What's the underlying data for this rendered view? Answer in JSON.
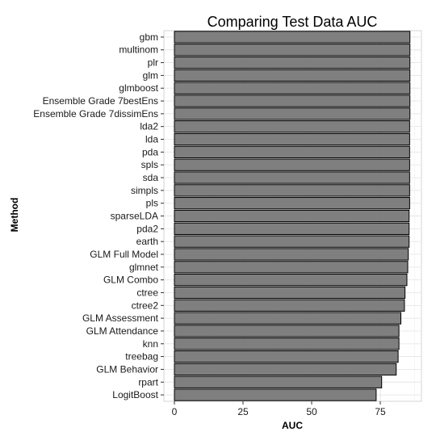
{
  "chart_data": {
    "type": "bar",
    "orientation": "horizontal",
    "title": "Comparing Test Data AUC",
    "xlabel": "AUC",
    "ylabel": "Method",
    "xlim": [
      0,
      100
    ],
    "x_ticks": [
      0,
      25,
      50,
      75
    ],
    "x_tick_labels": [
      "0",
      "25",
      "50",
      "75"
    ],
    "grid": true,
    "bar_color": "#7f7f7f",
    "bar_edge_color": "#000000",
    "categories": [
      "gbm",
      "multinom",
      "plr",
      "glm",
      "glmboost",
      "Ensemble Grade 7bestEns",
      "Ensemble Grade 7dissimEns",
      "lda2",
      "lda",
      "pda",
      "spls",
      "sda",
      "simpls",
      "pls",
      "sparseLDA",
      "pda2",
      "earth",
      "GLM Full Model",
      "glmnet",
      "GLM Combo",
      "ctree",
      "ctree2",
      "GLM Assessment",
      "GLM Attendance",
      "knn",
      "treebag",
      "GLM Behavior",
      "rpart",
      "LogitBoost"
    ],
    "values": [
      85.8,
      85.8,
      85.8,
      85.8,
      85.8,
      85.8,
      85.8,
      85.7,
      85.7,
      85.7,
      85.7,
      85.7,
      85.7,
      85.7,
      85.5,
      85.5,
      85.5,
      85.2,
      85.0,
      84.7,
      84.0,
      83.8,
      82.5,
      81.8,
      81.8,
      81.5,
      80.8,
      75.5,
      73.5
    ]
  }
}
